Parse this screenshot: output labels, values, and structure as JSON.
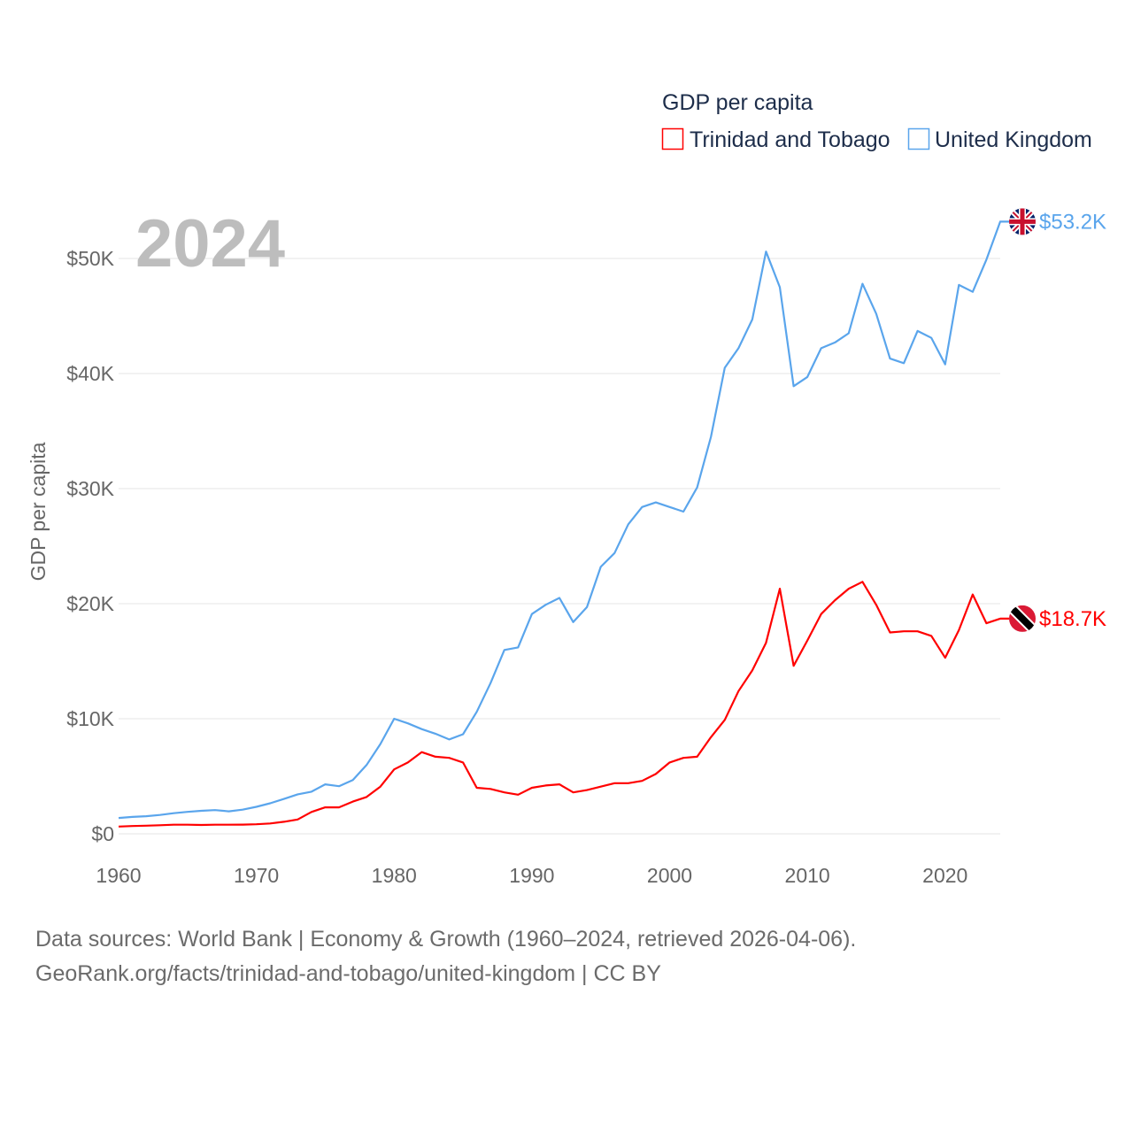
{
  "chart_data": {
    "type": "line",
    "title": "GDP per capita",
    "year_label": "2024",
    "ylabel": "GDP per capita",
    "xlabel": "",
    "xlim": [
      1960,
      2024
    ],
    "ylim": [
      0,
      53200
    ],
    "x_ticks": [
      1960,
      1970,
      1980,
      1990,
      2000,
      2010,
      2020
    ],
    "x_tick_labels": [
      "1960",
      "1970",
      "1980",
      "1990",
      "2000",
      "2010",
      "2020"
    ],
    "y_ticks": [
      0,
      10000,
      20000,
      30000,
      40000,
      50000
    ],
    "y_tick_labels": [
      "$0",
      "$10K",
      "$20K",
      "$30K",
      "$40K",
      "$50K"
    ],
    "grid": true,
    "legend_placement": "top-right",
    "x": [
      1960,
      1961,
      1962,
      1963,
      1964,
      1965,
      1966,
      1967,
      1968,
      1969,
      1970,
      1971,
      1972,
      1973,
      1974,
      1975,
      1976,
      1977,
      1978,
      1979,
      1980,
      1981,
      1982,
      1983,
      1984,
      1985,
      1986,
      1987,
      1988,
      1989,
      1990,
      1991,
      1992,
      1993,
      1994,
      1995,
      1996,
      1997,
      1998,
      1999,
      2000,
      2001,
      2002,
      2003,
      2004,
      2005,
      2006,
      2007,
      2008,
      2009,
      2010,
      2011,
      2012,
      2013,
      2014,
      2015,
      2016,
      2017,
      2018,
      2019,
      2020,
      2021,
      2022,
      2023,
      2024
    ],
    "series": [
      {
        "name": "Trinidad and Tobago",
        "color": "#ff0000",
        "end_label": "$18.7K",
        "flag": "trinidad-and-tobago-flag",
        "values": [
          630,
          680,
          710,
          750,
          790,
          790,
          770,
          790,
          790,
          800,
          830,
          900,
          1050,
          1250,
          1900,
          2300,
          2300,
          2800,
          3200,
          4100,
          5600,
          6200,
          7100,
          6700,
          6600,
          6200,
          4000,
          3900,
          3600,
          3400,
          4000,
          4200,
          4300,
          3600,
          3800,
          4100,
          4400,
          4400,
          4600,
          5200,
          6200,
          6600,
          6700,
          8400,
          9900,
          12400,
          14200,
          16600,
          21300,
          14600,
          16800,
          19100,
          20300,
          21300,
          21900,
          19900,
          17500,
          17600,
          17600,
          17200,
          15300,
          17700,
          20800,
          18300,
          18700
        ]
      },
      {
        "name": "United Kingdom",
        "color": "#5aa5ec",
        "end_label": "$53.2K",
        "flag": "united-kingdom-flag",
        "values": [
          1380,
          1470,
          1530,
          1640,
          1790,
          1910,
          2000,
          2060,
          1950,
          2100,
          2350,
          2650,
          3030,
          3430,
          3660,
          4300,
          4140,
          4680,
          5980,
          7800,
          10000,
          9600,
          9100,
          8700,
          8200,
          8650,
          10600,
          13100,
          15980,
          16200,
          19100,
          19900,
          20500,
          18400,
          19700,
          23200,
          24400,
          26900,
          28400,
          28800,
          28400,
          28000,
          30100,
          34500,
          40500,
          42200,
          44700,
          50600,
          47500,
          38900,
          39700,
          42200,
          42700,
          43500,
          47800,
          45200,
          41300,
          40900,
          43700,
          43100,
          40800,
          47700,
          47100,
          49900,
          53200
        ]
      }
    ],
    "footer": {
      "line1": "Data sources: World Bank | Economy & Growth (1960–2024, retrieved 2026-04-06).",
      "line2": "GeoRank.org/facts/trinidad-and-tobago/united-kingdom | CC BY"
    }
  }
}
